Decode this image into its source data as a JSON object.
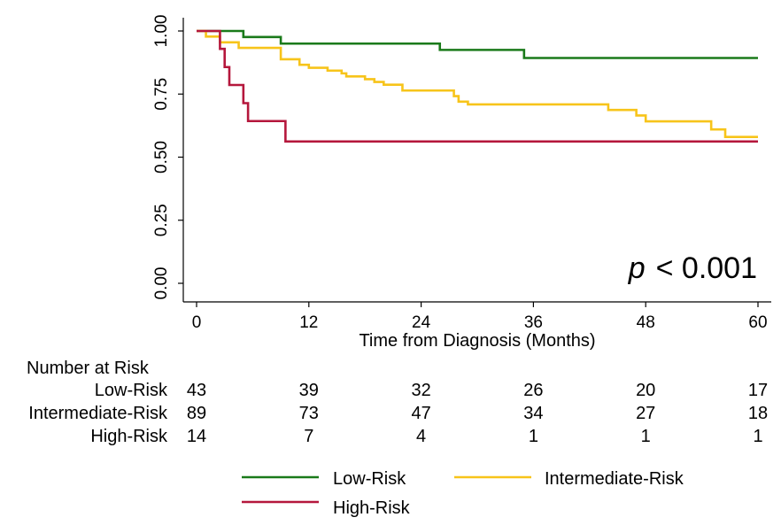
{
  "chart_data": {
    "type": "line",
    "title": "",
    "xlabel": "Time from Diagnosis (Months)",
    "ylabel": "",
    "xlim": [
      0,
      60
    ],
    "ylim": [
      0,
      1
    ],
    "x_ticks": [
      0,
      12,
      24,
      36,
      48,
      60
    ],
    "y_ticks": [
      "0.00",
      "0.25",
      "0.50",
      "0.75",
      "1.00"
    ],
    "grid": false,
    "annotation": {
      "p_label": "p",
      "p_value": "< 0.001"
    },
    "series": [
      {
        "name": "Low-Risk",
        "color": "#1a7a1a",
        "steps": [
          [
            0,
            1.0
          ],
          [
            5,
            0.976
          ],
          [
            9,
            0.95
          ],
          [
            26,
            0.925
          ],
          [
            35,
            0.893
          ],
          [
            60,
            0.893
          ]
        ]
      },
      {
        "name": "Intermediate-Risk",
        "color": "#f7c41a",
        "steps": [
          [
            0,
            1.0
          ],
          [
            1,
            0.978
          ],
          [
            2.5,
            0.955
          ],
          [
            4.5,
            0.933
          ],
          [
            9,
            0.888
          ],
          [
            11,
            0.866
          ],
          [
            12,
            0.854
          ],
          [
            14,
            0.843
          ],
          [
            15.5,
            0.832
          ],
          [
            16,
            0.82
          ],
          [
            18,
            0.809
          ],
          [
            19,
            0.798
          ],
          [
            20,
            0.787
          ],
          [
            22,
            0.764
          ],
          [
            27.5,
            0.742
          ],
          [
            28,
            0.72
          ],
          [
            29,
            0.709
          ],
          [
            44,
            0.687
          ],
          [
            47,
            0.665
          ],
          [
            48,
            0.642
          ],
          [
            55,
            0.61
          ],
          [
            56.5,
            0.58
          ],
          [
            60,
            0.58
          ]
        ]
      },
      {
        "name": "High-Risk",
        "color": "#b5173c",
        "steps": [
          [
            0,
            1.0
          ],
          [
            2.5,
            0.929
          ],
          [
            3,
            0.857
          ],
          [
            3.5,
            0.786
          ],
          [
            5,
            0.714
          ],
          [
            5.5,
            0.643
          ],
          [
            9.5,
            0.562
          ],
          [
            60,
            0.562
          ]
        ]
      }
    ],
    "risk_table": {
      "title": "Number at Risk",
      "rows": [
        {
          "label": "Low-Risk",
          "values": [
            "43",
            "39",
            "32",
            "26",
            "20",
            "17"
          ]
        },
        {
          "label": "Intermediate-Risk",
          "values": [
            "89",
            "73",
            "47",
            "34",
            "27",
            "18"
          ]
        },
        {
          "label": "High-Risk",
          "values": [
            "14",
            "7",
            "4",
            "1",
            "1",
            "1"
          ]
        }
      ]
    },
    "legend": {
      "placement": "bottom",
      "entries": [
        {
          "label": "Low-Risk",
          "color": "#1a7a1a"
        },
        {
          "label": "Intermediate-Risk",
          "color": "#f7c41a"
        },
        {
          "label": "High-Risk",
          "color": "#b5173c"
        }
      ]
    }
  }
}
